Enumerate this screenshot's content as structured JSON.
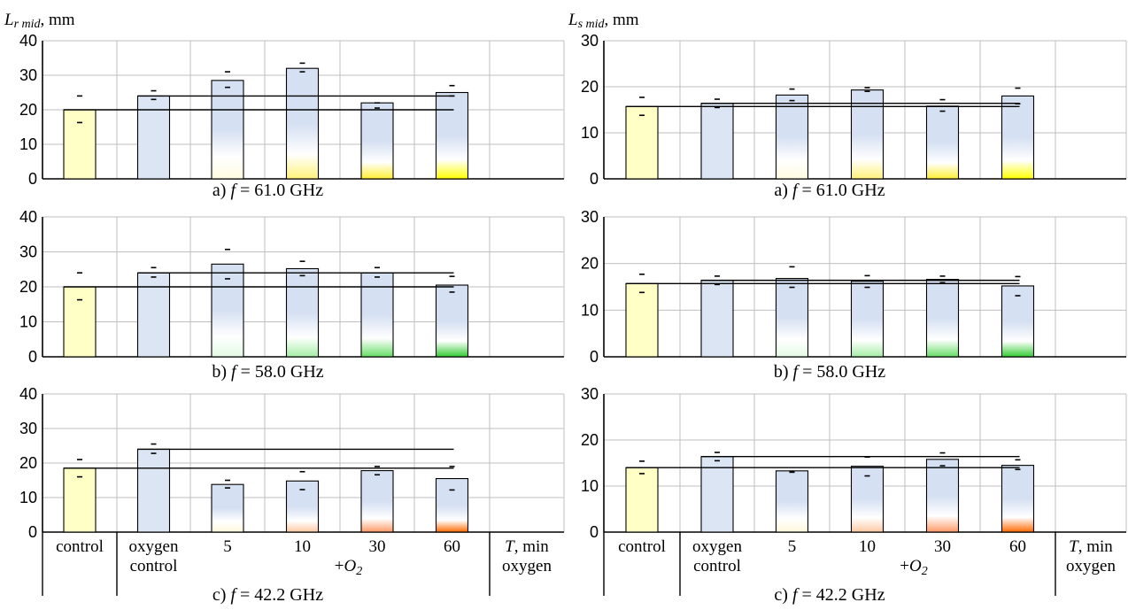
{
  "left_axis_title": {
    "symbol": "L",
    "subscript": "r mid",
    "unit": ", mm"
  },
  "right_axis_title": {
    "symbol": "L",
    "subscript": "s mid",
    "unit": ", mm"
  },
  "categories": [
    "control",
    "oxygen control",
    "5",
    "10",
    "30",
    "60",
    "T, min oxygen"
  ],
  "category_lines": [
    [
      "control"
    ],
    [
      "oxygen",
      "control"
    ],
    [
      "5"
    ],
    [
      "10"
    ],
    [
      "30"
    ],
    [
      "60"
    ],
    [
      "T, min",
      "oxygen"
    ]
  ],
  "group_label": "+O2",
  "colors": {
    "control": "#ffffc6",
    "oxygen_control": "#dbe5f4",
    "bar_top": "#d5e0f2",
    "f61": "#ffff00",
    "f58": "#33cc33",
    "f42": "#ff6a00"
  },
  "chart_data": [
    {
      "type": "bar",
      "panel": "a",
      "side": "left",
      "frequency": "f = 61.0 GHz",
      "ylim": [
        0,
        40
      ],
      "yticks": [
        0,
        10,
        20,
        30,
        40
      ],
      "grid": true,
      "values": [
        20,
        24,
        28.5,
        32,
        22,
        25
      ],
      "error_high": [
        24,
        25.5,
        31,
        33.5,
        22,
        27
      ],
      "error_low": [
        16.3,
        23,
        26.5,
        31,
        20.5,
        24
      ],
      "reference_lines": [
        24,
        20
      ]
    },
    {
      "type": "bar",
      "panel": "b",
      "side": "left",
      "frequency": "f = 58.0 GHz",
      "ylim": [
        0,
        40
      ],
      "yticks": [
        0,
        10,
        20,
        30,
        40
      ],
      "grid": true,
      "values": [
        20,
        24,
        26.5,
        25.2,
        24,
        20.5
      ],
      "error_high": [
        24,
        25.5,
        30.7,
        27.3,
        25.5,
        23
      ],
      "error_low": [
        16.3,
        22.8,
        22.3,
        23.2,
        22.8,
        18.5
      ],
      "reference_lines": [
        24,
        20
      ]
    },
    {
      "type": "bar",
      "panel": "c",
      "side": "left",
      "frequency": "f = 42.2 GHz",
      "ylim": [
        0,
        40
      ],
      "yticks": [
        0,
        10,
        20,
        30,
        40
      ],
      "grid": true,
      "values": [
        18.5,
        24,
        13.8,
        14.8,
        17.8,
        15.5
      ],
      "error_high": [
        21,
        25.5,
        15,
        17.5,
        19,
        19
      ],
      "error_low": [
        16,
        22.8,
        12.8,
        12.3,
        16.6,
        12.2
      ],
      "reference_lines": [
        24,
        18.5
      ]
    },
    {
      "type": "bar",
      "panel": "a",
      "side": "right",
      "frequency": "f = 61.0 GHz",
      "ylim": [
        0,
        30
      ],
      "yticks": [
        0,
        10,
        20,
        30
      ],
      "grid": true,
      "values": [
        15.7,
        16.4,
        18.2,
        19.3,
        15.8,
        18
      ],
      "error_high": [
        17.7,
        17.3,
        19.5,
        19.8,
        17.2,
        19.7
      ],
      "error_low": [
        13.8,
        15.5,
        17,
        19,
        14.7,
        16.3
      ],
      "reference_lines": [
        16.4,
        15.7
      ]
    },
    {
      "type": "bar",
      "panel": "b",
      "side": "right",
      "frequency": "f = 58.0 GHz",
      "ylim": [
        0,
        30
      ],
      "yticks": [
        0,
        10,
        20,
        30
      ],
      "grid": true,
      "values": [
        15.7,
        16.4,
        16.8,
        16.2,
        16.6,
        15.2
      ],
      "error_high": [
        17.7,
        17.3,
        19.3,
        17.4,
        17.3,
        17.2
      ],
      "error_low": [
        13.8,
        15.5,
        14.9,
        14.9,
        15.9,
        13.1
      ],
      "reference_lines": [
        16.4,
        15.7
      ]
    },
    {
      "type": "bar",
      "panel": "c",
      "side": "right",
      "frequency": "f = 42.2 GHz",
      "ylim": [
        0,
        30
      ],
      "yticks": [
        0,
        10,
        20,
        30
      ],
      "grid": true,
      "values": [
        14,
        16.4,
        13.3,
        14.3,
        15.8,
        14.5
      ],
      "error_high": [
        15.4,
        17.3,
        13.2,
        16.3,
        17.2,
        15.7
      ],
      "error_low": [
        12.7,
        15.5,
        13,
        12.2,
        14.4,
        13.6
      ],
      "reference_lines": [
        16.4,
        14
      ]
    }
  ]
}
